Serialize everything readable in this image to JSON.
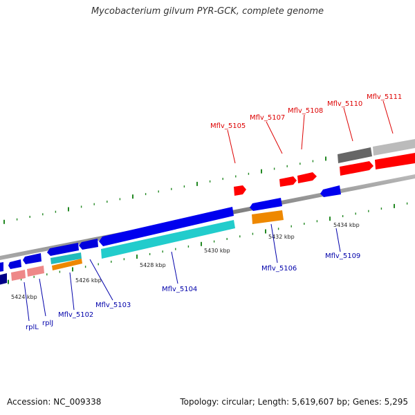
{
  "title": "Mycobacterium gilvum PYR-GCK, complete genome",
  "footer": {
    "accession": "Accession: NC_009338",
    "topology": "Topology: circular; Length: 5,619,607 bp; Genes: 5,295"
  },
  "colors": {
    "forward_label": "#dd0000",
    "reverse_label": "#0000aa",
    "backbone": "#888888",
    "ticks": "#228822"
  },
  "scale_labels": [
    "5424 kbp",
    "5426 kbp",
    "5428 kbp",
    "5430 kbp",
    "5432 kbp",
    "5434 kbp"
  ],
  "genes_top": [
    {
      "name": "Mflv_5105",
      "color": "#ff0000"
    },
    {
      "name": "Mflv_5107",
      "color": "#ff0000"
    },
    {
      "name": "Mflv_5108",
      "color": "#ff0000"
    },
    {
      "name": "Mflv_5110",
      "color": "#ff0000"
    },
    {
      "name": "Mflv_5111",
      "color": "#ff0000"
    }
  ],
  "genes_bottom": [
    {
      "name": "rplL",
      "color": "#0000ee"
    },
    {
      "name": "rplJ",
      "color": "#0000ee"
    },
    {
      "name": "Mflv_5102",
      "color": "#0000ee"
    },
    {
      "name": "Mflv_5103",
      "color": "#0000ee"
    },
    {
      "name": "Mflv_5104",
      "color": "#0000ee"
    },
    {
      "name": "Mflv_5106",
      "color": "#0000ee"
    },
    {
      "name": "Mflv_5109",
      "color": "#0000ee"
    }
  ]
}
